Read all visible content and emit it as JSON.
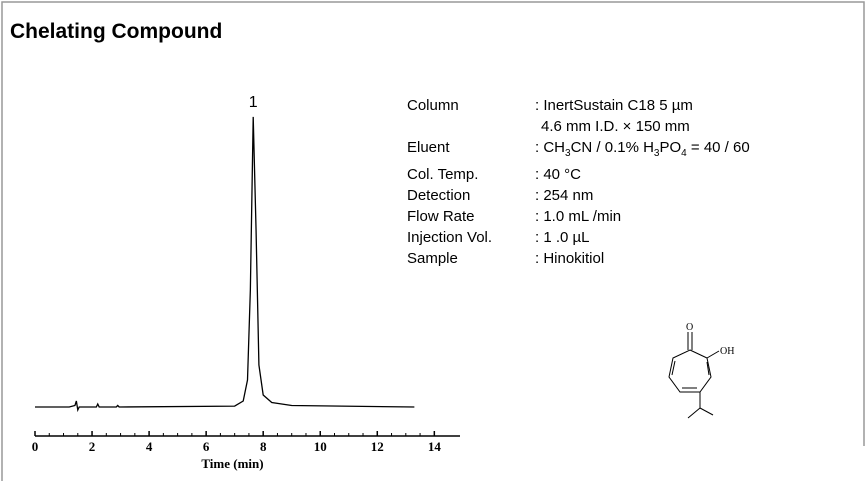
{
  "chart_data": {
    "type": "line",
    "title": "Chelating Compound",
    "xlabel": "Time (min)",
    "annotation": "1",
    "color": "#000000",
    "x": [
      0,
      1.2,
      1.4,
      1.45,
      1.5,
      1.55,
      2.15,
      2.2,
      2.25,
      2.85,
      2.9,
      2.95,
      7.0,
      7.3,
      7.45,
      7.55,
      7.65,
      7.75,
      7.85,
      8.0,
      8.3,
      9.0,
      13.3
    ],
    "values": [
      1,
      1,
      1.5,
      3,
      0,
      1,
      1,
      2,
      1,
      1,
      1.5,
      1,
      1.3,
      3,
      10,
      40,
      97.7,
      60,
      15,
      5,
      2.5,
      1.5,
      1
    ],
    "xlim": [
      0,
      14.9
    ],
    "xticks": [
      0,
      2,
      4,
      6,
      8,
      10,
      12,
      14
    ],
    "ylim": [
      0,
      100
    ],
    "conditions": [
      {
        "label": "Column",
        "lines": [
          [
            ": InertSustain C18   5 µm"
          ],
          [
            "4.6 mm I.D. × 150 mm"
          ]
        ]
      },
      {
        "label": "Eluent",
        "lines": [
          [
            ": CH",
            {
              "sub": "3"
            },
            "CN / 0.1% H",
            {
              "sub": "3"
            },
            "PO",
            {
              "sub": "4"
            },
            " = 40 / 60"
          ]
        ]
      },
      {
        "label": "Col. Temp.",
        "lines": [
          [
            ": 40 °C"
          ]
        ]
      },
      {
        "label": "Detection",
        "lines": [
          [
            ": 254 nm"
          ]
        ]
      },
      {
        "label": "Flow Rate",
        "lines": [
          [
            ": 1.0 mL /min"
          ]
        ]
      },
      {
        "label": "Injection Vol.",
        "lines": [
          [
            ": 1 .0 µL"
          ]
        ]
      },
      {
        "label": "Sample",
        "lines": [
          [
            ": Hinokitiol"
          ]
        ]
      }
    ]
  }
}
